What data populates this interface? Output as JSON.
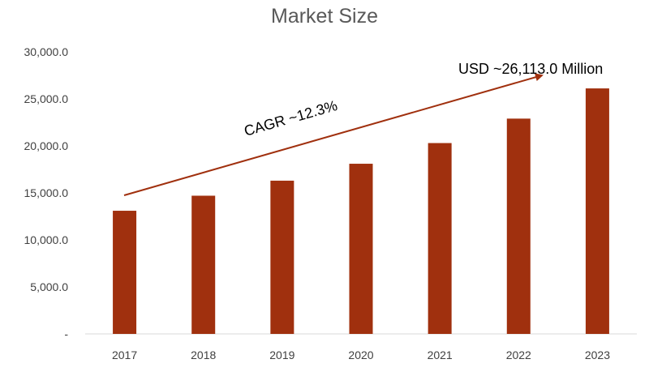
{
  "chart_data": {
    "type": "bar",
    "title": "Market Size",
    "xlabel": "",
    "ylabel": "",
    "categories": [
      "2017",
      "2018",
      "2019",
      "2020",
      "2021",
      "2022",
      "2023"
    ],
    "values": [
      13100,
      14700,
      16300,
      18100,
      20300,
      22900,
      26113
    ],
    "ylim": [
      0,
      30000
    ],
    "yticks": [
      0,
      5000,
      10000,
      15000,
      20000,
      25000,
      30000
    ],
    "ytick_labels": [
      "-",
      "5,000.0",
      "10,000.0",
      "15,000.0",
      "20,000.0",
      "25,000.0",
      "30,000.0"
    ],
    "grid": false,
    "legend": "none",
    "bar_color": "#a0300e",
    "annotations": {
      "cagr_label": "CAGR ~12.3%",
      "value_label": "USD ~26,113.0  Million",
      "arrow_color": "#a0300e"
    }
  }
}
